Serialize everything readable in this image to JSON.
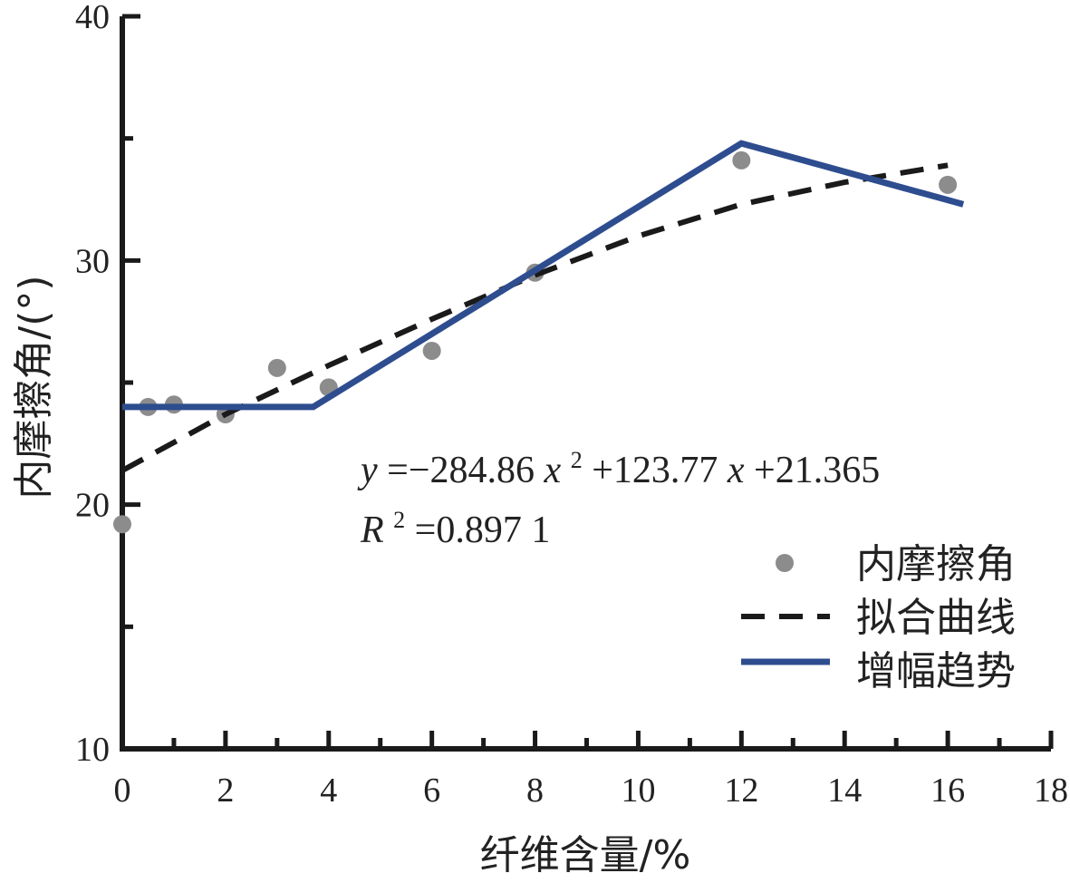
{
  "chart_data": {
    "type": "scatter",
    "xlabel": "纤维含量/%",
    "ylabel": "内摩擦角/(°)",
    "xlim": [
      0,
      18
    ],
    "ylim": [
      10,
      40
    ],
    "x_ticks": [
      0,
      2,
      4,
      6,
      8,
      10,
      12,
      14,
      16,
      18
    ],
    "y_ticks": [
      10,
      20,
      30,
      40
    ],
    "grid": false,
    "legend_position": "bottom-right",
    "colors": {
      "points": "#8c8c8c",
      "fit": "#1a1a1a",
      "trend": "#2e4d8f",
      "axis": "#1a1a1a"
    },
    "series": [
      {
        "name": "内摩擦角",
        "kind": "scatter",
        "points": [
          {
            "x": 0,
            "y": 19.2
          },
          {
            "x": 0.5,
            "y": 24.0
          },
          {
            "x": 1,
            "y": 24.1
          },
          {
            "x": 2,
            "y": 23.7
          },
          {
            "x": 3,
            "y": 25.6
          },
          {
            "x": 4,
            "y": 24.8
          },
          {
            "x": 6,
            "y": 26.3
          },
          {
            "x": 8,
            "y": 29.5
          },
          {
            "x": 12,
            "y": 34.1
          },
          {
            "x": 16,
            "y": 33.1
          }
        ]
      },
      {
        "name": "拟合曲线",
        "kind": "dashed-line",
        "points": [
          {
            "x": 0,
            "y": 21.4
          },
          {
            "x": 2,
            "y": 23.7
          },
          {
            "x": 4,
            "y": 25.7
          },
          {
            "x": 6,
            "y": 27.6
          },
          {
            "x": 8,
            "y": 29.4
          },
          {
            "x": 10,
            "y": 31.0
          },
          {
            "x": 12,
            "y": 32.3
          },
          {
            "x": 14,
            "y": 33.2
          },
          {
            "x": 16,
            "y": 33.9
          }
        ]
      },
      {
        "name": "增幅趋势",
        "kind": "solid-line",
        "points": [
          {
            "x": 0,
            "y": 24.0
          },
          {
            "x": 3.7,
            "y": 24.0
          },
          {
            "x": 12,
            "y": 34.8
          },
          {
            "x": 16.3,
            "y": 32.3
          }
        ]
      }
    ],
    "annotations": {
      "equation": {
        "y": "y",
        "eq_mid": "=−284.86",
        "x1": "x",
        "sup2": "2",
        "plus1": "+123.77",
        "x2": "x",
        "tail": "+21.365"
      },
      "r2": {
        "R": "R",
        "sup2": "2",
        "value": "=0.897 1"
      }
    }
  }
}
